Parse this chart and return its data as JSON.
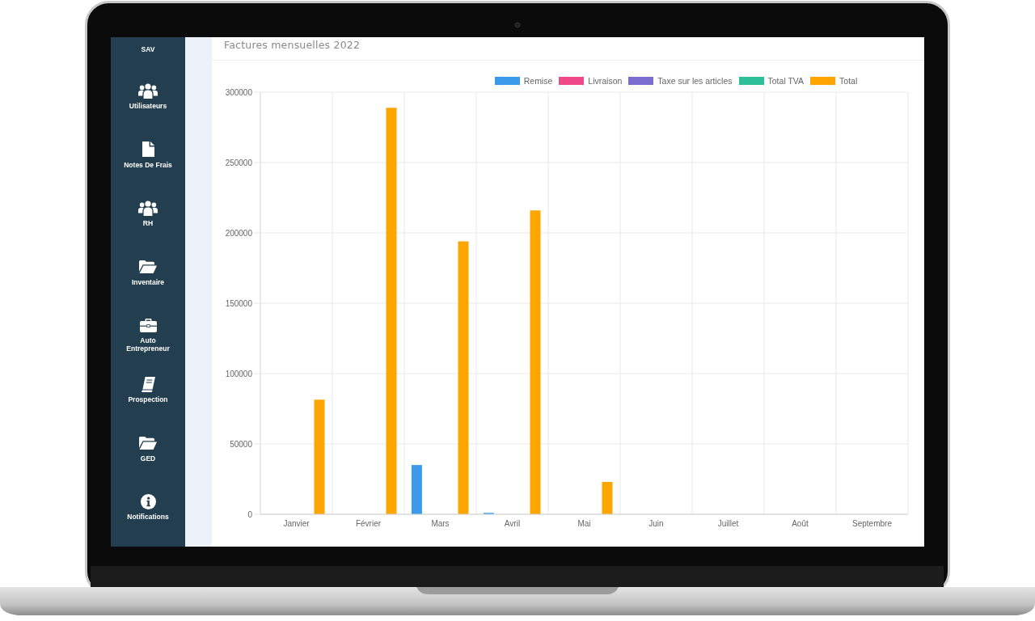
{
  "chart_data": [
    {
      "type": "other",
      "annotations": [
        "SAV",
        "Utilisateurs",
        "Notes De Frais",
        "RH",
        "Inventaire",
        "Auto Entrepreneur",
        "Prospection",
        "GED",
        "Notifications"
      ]
    },
    {
      "type": "bar",
      "title": "Factures mensuelles 2022",
      "categories": [
        "Janvier",
        "Février",
        "Mars",
        "Avril",
        "Mai",
        "Juin",
        "Juillet",
        "Août",
        "Septembre"
      ],
      "series": [
        {
          "name": "Remise",
          "color": "#3b9bea",
          "values": [
            0,
            0,
            35000,
            1000,
            0,
            0,
            0,
            0,
            0
          ]
        },
        {
          "name": "Livraison",
          "color": "#f0498a",
          "values": [
            0,
            0,
            0,
            0,
            0,
            0,
            0,
            0,
            0
          ]
        },
        {
          "name": "Taxe sur les articles",
          "color": "#7c6ed0",
          "values": [
            0,
            0,
            0,
            0,
            0,
            0,
            0,
            0,
            0
          ]
        },
        {
          "name": "Total TVA",
          "color": "#2dbf9a",
          "values": [
            0,
            0,
            0,
            0,
            0,
            0,
            0,
            0,
            0
          ]
        },
        {
          "name": "Total",
          "color": "#ffa500",
          "values": [
            81500,
            289000,
            194000,
            216000,
            23000,
            0,
            0,
            0,
            0
          ]
        }
      ],
      "ylim": [
        0,
        300000
      ],
      "yticks": [
        0,
        50000,
        100000,
        150000,
        200000,
        250000,
        300000
      ],
      "grid": true,
      "legend": "top"
    }
  ]
}
